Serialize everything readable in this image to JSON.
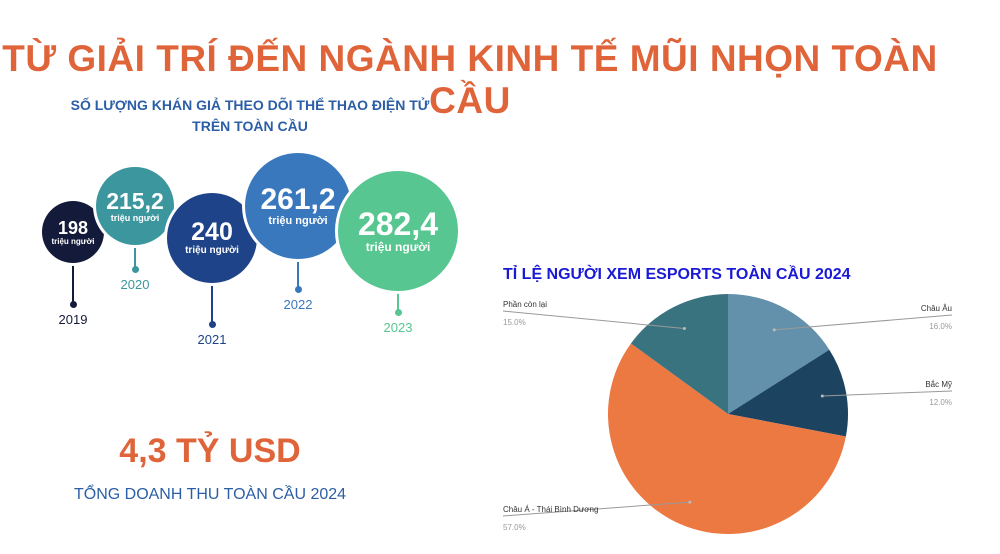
{
  "title": "TỪ GIẢI TRÍ ĐẾN NGÀNH KINH TẾ MŨI NHỌN TOÀN CẦU",
  "audience": {
    "subtitle_line1": "SỐ LƯỢNG KHÁN GIẢ THEO DÕI THỂ THAO ĐIỆN TỬ",
    "subtitle_line2": "TRÊN TOÀN CẦU",
    "unit": "triệu người",
    "items": [
      {
        "year": "2019",
        "value": "198",
        "color": "#141a3a"
      },
      {
        "year": "2020",
        "value": "215,2",
        "color": "#3c969e"
      },
      {
        "year": "2021",
        "value": "240",
        "color": "#1e4388"
      },
      {
        "year": "2022",
        "value": "261,2",
        "color": "#3a78be"
      },
      {
        "year": "2023",
        "value": "282,4",
        "color": "#58c690"
      }
    ]
  },
  "revenue": {
    "value": "4,3 TỶ USD",
    "label": "TỔNG DOANH THU TOÀN CẦU 2024"
  },
  "chart_data": {
    "type": "pie",
    "title": "TỈ LỆ NGƯỜI XEM ESPORTS TOÀN CẦU 2024",
    "slices": [
      {
        "label": "Châu Âu",
        "value": 16.0,
        "pct": "16.0%",
        "color": "#6391ab"
      },
      {
        "label": "Bắc Mỹ",
        "value": 12.0,
        "pct": "12.0%",
        "color": "#1c4461"
      },
      {
        "label": "Châu Á - Thái Bình Dương",
        "value": 57.0,
        "pct": "57.0%",
        "color": "#ec7842"
      },
      {
        "label": "Phần còn lại",
        "value": 15.0,
        "pct": "15.0%",
        "color": "#3a7380"
      }
    ]
  }
}
